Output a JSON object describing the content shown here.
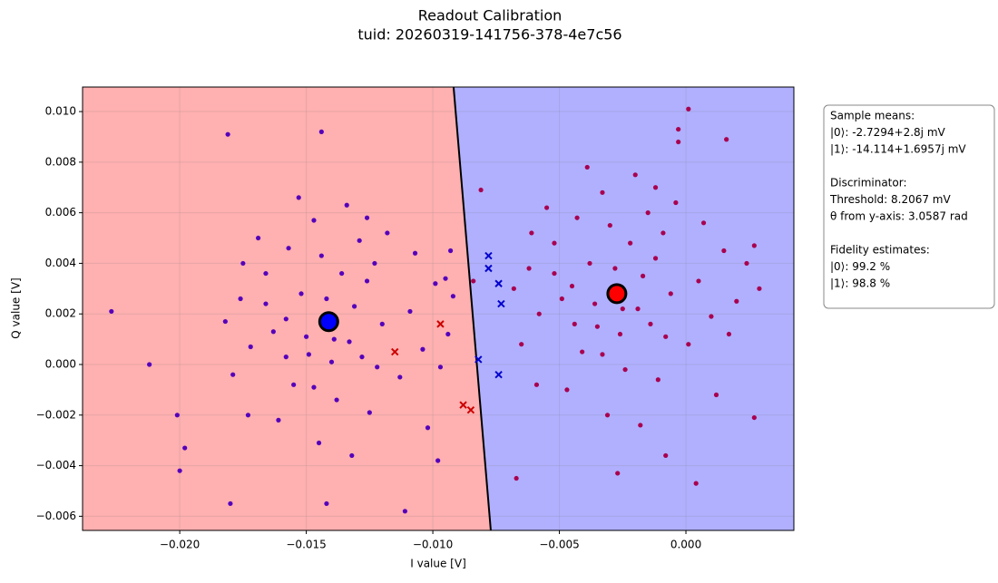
{
  "chart_data": {
    "type": "scatter",
    "title": "Readout Calibration",
    "subtitle": "tuid: 20260319-141756-378-4e7c56",
    "x_label": "I value [V]",
    "y_label": "Q value [V]",
    "xlim": [
      -0.02384,
      0.004265
    ],
    "ylim": [
      -0.00656,
      0.01097
    ],
    "xticks": [
      {
        "value": -0.02,
        "label": "−0.020"
      },
      {
        "value": -0.015,
        "label": "−0.015"
      },
      {
        "value": -0.01,
        "label": "−0.010"
      },
      {
        "value": -0.005,
        "label": "−0.005"
      },
      {
        "value": 0,
        "label": "0.000"
      }
    ],
    "yticks": [
      {
        "value": -0.006,
        "label": "−0.006"
      },
      {
        "value": -0.004,
        "label": "−0.004"
      },
      {
        "value": -0.002,
        "label": "−0.002"
      },
      {
        "value": 0,
        "label": "0.000"
      },
      {
        "value": 0.002,
        "label": "0.002"
      },
      {
        "value": 0.004,
        "label": "0.004"
      },
      {
        "value": 0.006,
        "label": "0.006"
      },
      {
        "value": 0.008,
        "label": "0.008"
      },
      {
        "value": 0.01,
        "label": "0.010"
      }
    ],
    "grid": true,
    "regions": {
      "left_color": "#ffb0b0",
      "right_color": "#b0b0ff"
    },
    "boundary": {
      "x": [
        -0.00918,
        -0.00771
      ],
      "y": [
        0.01097,
        -0.00656
      ],
      "color": "#000000"
    },
    "series": [
      {
        "marker": "dot",
        "color": "#a8004f",
        "x": [
          -0.0045,
          -0.0012,
          -0.0035,
          -0.0019,
          -0.0052,
          -0.0008,
          -0.003,
          -0.0041,
          -0.0015,
          -0.0058,
          0.0005,
          -0.0024,
          -0.0062,
          -0.0033,
          0.001,
          -0.0047,
          -0.0011,
          -0.002,
          0.0015,
          -0.0055,
          -0.0038,
          -0.0026,
          -0.0006,
          -0.0049,
          -0.0017,
          0.002,
          -0.0065,
          -0.0031,
          -0.0009,
          -0.0043,
          0.0001,
          -0.0059,
          -0.0022,
          -0.0036,
          0.0012,
          -0.0014,
          -0.0052,
          -0.0028,
          -0.0004,
          -0.0068,
          0.0024,
          -0.0039,
          -0.0018,
          -0.0044,
          0.0007,
          -0.0025,
          -0.0061,
          -0.0033,
          0.0017,
          -0.0012,
          0.0001,
          -0.0003,
          -0.0003,
          0.0016,
          -0.0067,
          -0.0027,
          0.0004,
          0.0027,
          0.0029,
          0.0027,
          -0.0081,
          -0.0084,
          -0.0008
        ],
        "y": [
          0.0031,
          0.0042,
          0.0015,
          0.0022,
          0.0048,
          0.0011,
          0.0055,
          0.0005,
          0.006,
          0.002,
          0.0033,
          -0.0002,
          0.0038,
          0.0068,
          0.0019,
          -0.001,
          -0.0006,
          0.0075,
          0.0045,
          0.0062,
          0.004,
          0.0012,
          0.0028,
          0.0026,
          0.0035,
          0.0025,
          0.0008,
          -0.002,
          0.0052,
          0.0058,
          0.0008,
          -0.0008,
          0.0048,
          0.0024,
          -0.0012,
          0.0016,
          0.0036,
          0.0038,
          0.0064,
          0.003,
          0.004,
          0.0078,
          -0.0024,
          0.0016,
          0.0056,
          0.0022,
          0.0052,
          0.0004,
          0.0012,
          0.007,
          0.0101,
          0.0093,
          0.0088,
          0.0089,
          -0.0045,
          -0.0043,
          -0.0047,
          -0.0021,
          0.003,
          0.0047,
          0.0069,
          0.0033,
          -0.0036
        ]
      },
      {
        "marker": "dot",
        "color": "#5500bb",
        "x": [
          -0.0158,
          -0.0126,
          -0.0149,
          -0.0133,
          -0.0166,
          -0.0122,
          -0.0144,
          -0.0155,
          -0.0129,
          -0.0172,
          -0.0109,
          -0.0138,
          -0.0176,
          -0.0147,
          -0.0104,
          -0.0161,
          -0.0125,
          -0.0134,
          -0.0099,
          -0.0169,
          -0.0152,
          -0.014,
          -0.012,
          -0.0163,
          -0.0131,
          -0.0094,
          -0.0179,
          -0.0145,
          -0.0123,
          -0.0157,
          -0.0113,
          -0.0173,
          -0.0136,
          -0.015,
          -0.0102,
          -0.0128,
          -0.0166,
          -0.0142,
          -0.0118,
          -0.0182,
          -0.0092,
          -0.0153,
          -0.0132,
          -0.0158,
          -0.0107,
          -0.0139,
          -0.0175,
          -0.0147,
          -0.0097,
          -0.0126,
          -0.0227,
          -0.0212,
          -0.0201,
          -0.02,
          -0.0198,
          -0.0181,
          -0.018,
          -0.0144,
          -0.0142,
          -0.0111,
          -0.0098,
          -0.0093,
          -0.0095
        ],
        "y": [
          0.0018,
          0.0033,
          0.0004,
          0.0009,
          0.0036,
          -0.0001,
          0.0043,
          -0.0008,
          0.0049,
          0.0007,
          0.0021,
          -0.0014,
          0.0026,
          0.0057,
          0.0006,
          -0.0022,
          -0.0019,
          0.0063,
          0.0032,
          0.005,
          0.0028,
          0.0001,
          0.0016,
          0.0013,
          0.0023,
          0.0012,
          -0.0004,
          -0.0031,
          0.004,
          0.0046,
          -0.0005,
          -0.002,
          0.0036,
          0.0011,
          -0.0025,
          0.0003,
          0.0024,
          0.0026,
          0.0052,
          0.0017,
          0.0027,
          0.0066,
          -0.0036,
          0.0003,
          0.0044,
          0.001,
          0.004,
          -0.0009,
          -0.0001,
          0.0058,
          0.0021,
          0.0,
          -0.002,
          -0.0042,
          -0.0033,
          0.0091,
          -0.0055,
          0.0092,
          -0.0055,
          -0.0058,
          -0.0038,
          0.0045,
          0.0034
        ]
      },
      {
        "marker": "x",
        "color": "#cc0000",
        "x": [
          -0.0097,
          -0.0115,
          -0.0088,
          -0.0085
        ],
        "y": [
          0.0016,
          0.0005,
          -0.0016,
          -0.0018
        ]
      },
      {
        "marker": "x",
        "color": "#0000cc",
        "x": [
          -0.0078,
          -0.0078,
          -0.0074,
          -0.0073,
          -0.0082,
          -0.0074
        ],
        "y": [
          0.0043,
          0.0038,
          0.0032,
          0.0024,
          0.0002,
          -0.0004
        ]
      },
      {
        "marker": "mean",
        "color": "#ff0000",
        "x": [
          -0.0027294
        ],
        "y": [
          0.0028
        ]
      },
      {
        "marker": "mean",
        "color": "#0000ff",
        "x": [
          -0.014114
        ],
        "y": [
          0.0016957
        ]
      }
    ],
    "info_box": [
      [
        "Sample means:",
        "|0⟩: -2.7294+2.8j mV",
        "|1⟩: -14.114+1.6957j mV"
      ],
      [
        "Discriminator:",
        "Threshold: 8.2067 mV",
        "θ from y-axis: 3.0587 rad"
      ],
      [
        "Fidelity estimates:",
        "|0⟩: 99.2 %",
        "|1⟩: 98.8 %"
      ]
    ]
  }
}
